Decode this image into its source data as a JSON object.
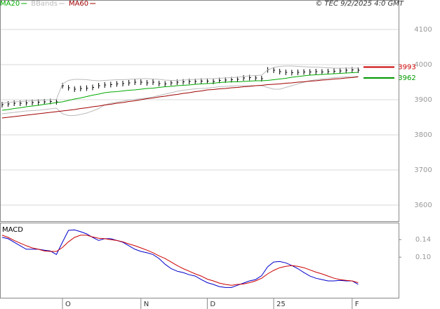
{
  "chart_data": [
    {
      "type": "line",
      "title": "© TEC 9/2/2025 4:0 GMT",
      "categories": [
        null,
        null,
        null,
        null,
        null,
        null,
        null,
        null,
        null,
        null,
        "O",
        null,
        null,
        null,
        null,
        null,
        null,
        null,
        null,
        null,
        null,
        null,
        null,
        "N",
        null,
        null,
        null,
        null,
        null,
        null,
        null,
        null,
        null,
        null,
        "D",
        null,
        null,
        null,
        null,
        null,
        null,
        null,
        null,
        null,
        null,
        "25",
        null,
        null,
        null,
        null,
        null,
        null,
        null,
        null,
        null,
        null,
        null,
        null,
        "F",
        null
      ],
      "ylim": [
        3554,
        4184
      ],
      "yticks": [
        3600,
        3700,
        3800,
        3900,
        4000,
        4100
      ],
      "grid": true,
      "series": [
        {
          "color": "#000000",
          "marker": "bar",
          "values": [
            3886,
            3888,
            3890,
            3890,
            3891,
            3892,
            3893,
            3894,
            3895,
            3894,
            3940,
            3934,
            3930,
            3932,
            3933,
            3935,
            3940,
            3942,
            3943,
            3945,
            3946,
            3948,
            3950,
            3950,
            3948,
            3950,
            3946,
            3945,
            3948,
            3950,
            3951,
            3952,
            3952,
            3953,
            3953,
            3952,
            3955,
            3956,
            3957,
            3958,
            3962,
            3963,
            3962,
            3960,
            3985,
            3984,
            3980,
            3978,
            3977,
            3978,
            3979,
            3979,
            3980,
            3979,
            3980,
            3981,
            3982,
            3984,
            3985,
            3984
          ]
        },
        {
          "name": "MA20",
          "color": "#00aa00",
          "values": [
            3870,
            3872,
            3875,
            3877,
            3880,
            3882,
            3884,
            3887,
            3889,
            3892,
            3894,
            3898,
            3902,
            3905,
            3909,
            3913,
            3916,
            3920,
            3922,
            3923,
            3925,
            3927,
            3928,
            3930,
            3932,
            3933,
            3935,
            3937,
            3938,
            3940,
            3941,
            3942,
            3944,
            3945,
            3946,
            3947,
            3949,
            3950,
            3951,
            3951,
            3952,
            3953,
            3954,
            3954,
            3955,
            3957,
            3959,
            3961,
            3964,
            3966,
            3968,
            3970,
            3971,
            3972,
            3973,
            3974,
            3975,
            3976,
            3977,
            3978
          ]
        },
        {
          "name": "BBands",
          "color": "#bbbbbb",
          "values": [
            3890,
            3892,
            3894,
            3895,
            3896,
            3897,
            3898,
            3899,
            3900,
            3901,
            3945,
            3955,
            3958,
            3958,
            3957,
            3955,
            3954,
            3955,
            3956,
            3957,
            3957,
            3958,
            3959,
            3960,
            3960,
            3959,
            3958,
            3956,
            3955,
            3955,
            3956,
            3957,
            3958,
            3959,
            3960,
            3960,
            3961,
            3962,
            3963,
            3964,
            3966,
            3968,
            3969,
            3970,
            3985,
            3992,
            3995,
            3996,
            3996,
            3995,
            3994,
            3993,
            3993,
            3992,
            3991,
            3990,
            3990,
            3990,
            3990,
            3990
          ],
          "lower": [
            3860,
            3862,
            3864,
            3866,
            3868,
            3869,
            3870,
            3872,
            3874,
            3876,
            3860,
            3855,
            3855,
            3858,
            3862,
            3868,
            3875,
            3885,
            3890,
            3893,
            3896,
            3899,
            3901,
            3903,
            3905,
            3908,
            3912,
            3916,
            3920,
            3924,
            3927,
            3929,
            3931,
            3932,
            3933,
            3935,
            3937,
            3938,
            3939,
            3940,
            3940,
            3940,
            3940,
            3940,
            3935,
            3930,
            3930,
            3935,
            3940,
            3945,
            3950,
            3954,
            3957,
            3959,
            3961,
            3963,
            3964,
            3965,
            3966,
            3967
          ]
        },
        {
          "name": "MA60",
          "color": "#a00000",
          "values": [
            3848,
            3850,
            3852,
            3854,
            3856,
            3858,
            3860,
            3862,
            3864,
            3866,
            3868,
            3870,
            3872,
            3875,
            3877,
            3880,
            3882,
            3885,
            3887,
            3890,
            3892,
            3895,
            3897,
            3900,
            3903,
            3905,
            3908,
            3910,
            3913,
            3915,
            3918,
            3920,
            3923,
            3925,
            3928,
            3929,
            3931,
            3932,
            3934,
            3935,
            3937,
            3938,
            3940,
            3941,
            3943,
            3944,
            3945,
            3947,
            3948,
            3950,
            3951,
            3953,
            3954,
            3956,
            3957,
            3959,
            3960,
            3962,
            3963,
            3965
          ]
        }
      ],
      "annotations": [
        {
          "value": 3993,
          "color": "#cc0000"
        },
        {
          "value": 3962,
          "color": "#009900"
        }
      ]
    },
    {
      "type": "line",
      "title": "MACD",
      "ylim": [
        0.006,
        0.177
      ],
      "yticks": [
        {
          "value": 0.1,
          "label": "0.10"
        },
        0.14
      ],
      "series": [
        {
          "color": "#0000cc",
          "values": [
            0.145,
            0.142,
            0.134,
            0.126,
            0.118,
            0.118,
            0.118,
            0.116,
            0.114,
            0.106,
            0.134,
            0.161,
            0.162,
            0.158,
            0.153,
            0.145,
            0.138,
            0.142,
            0.142,
            0.138,
            0.134,
            0.126,
            0.118,
            0.113,
            0.11,
            0.106,
            0.097,
            0.084,
            0.074,
            0.068,
            0.065,
            0.06,
            0.057,
            0.049,
            0.042,
            0.038,
            0.033,
            0.031,
            0.031,
            0.036,
            0.041,
            0.046,
            0.049,
            0.058,
            0.078,
            0.089,
            0.09,
            0.087,
            0.081,
            0.074,
            0.065,
            0.057,
            0.052,
            0.049,
            0.046,
            0.046,
            0.047,
            0.046,
            0.046,
            0.038
          ]
        },
        {
          "color": "#cc0000",
          "values": [
            0.15,
            0.145,
            0.138,
            0.132,
            0.126,
            0.121,
            0.118,
            0.114,
            0.113,
            0.113,
            0.122,
            0.135,
            0.145,
            0.15,
            0.15,
            0.146,
            0.143,
            0.142,
            0.14,
            0.138,
            0.135,
            0.13,
            0.126,
            0.121,
            0.116,
            0.11,
            0.103,
            0.097,
            0.089,
            0.081,
            0.074,
            0.068,
            0.062,
            0.057,
            0.05,
            0.046,
            0.041,
            0.038,
            0.036,
            0.038,
            0.039,
            0.042,
            0.046,
            0.052,
            0.062,
            0.07,
            0.076,
            0.079,
            0.081,
            0.079,
            0.076,
            0.071,
            0.066,
            0.062,
            0.057,
            0.052,
            0.049,
            0.047,
            0.046,
            0.042
          ]
        }
      ]
    }
  ]
}
